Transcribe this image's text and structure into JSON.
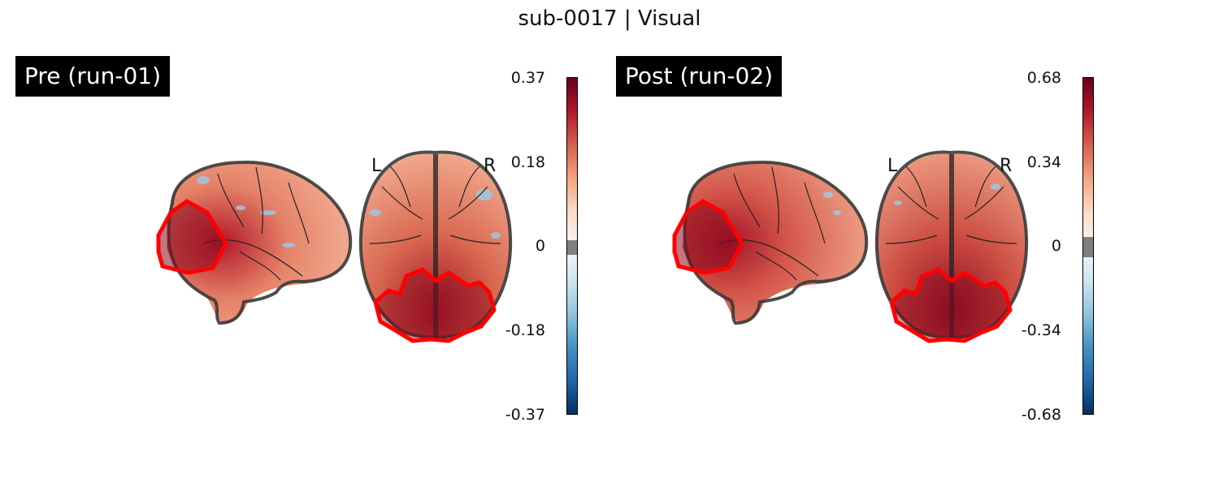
{
  "figure": {
    "title": "sub-0017 | Visual"
  },
  "panels": [
    {
      "label": "Pre (run-01)",
      "hemisphere_labels": {
        "left": "L",
        "right": "R"
      },
      "colorbar": {
        "ticks": [
          "0.37",
          "0.18",
          "0",
          "-0.18",
          "-0.37"
        ],
        "vmin": -0.37,
        "vmax": 0.37,
        "colormap": [
          "#053061",
          "#2166ac",
          "#4393c3",
          "#92c5de",
          "#d1e5f0",
          "#f7f7f7",
          "#fddbc7",
          "#f4a582",
          "#d6604d",
          "#b2182b",
          "#67001f"
        ],
        "threshold_color": "#808080"
      }
    },
    {
      "label": "Post (run-02)",
      "hemisphere_labels": {
        "left": "L",
        "right": "R"
      },
      "colorbar": {
        "ticks": [
          "0.68",
          "0.34",
          "0",
          "-0.34",
          "-0.68"
        ],
        "vmin": -0.68,
        "vmax": 0.68,
        "colormap": [
          "#053061",
          "#2166ac",
          "#4393c3",
          "#92c5de",
          "#d1e5f0",
          "#f7f7f7",
          "#fddbc7",
          "#f4a582",
          "#d6604d",
          "#b2182b",
          "#67001f"
        ],
        "threshold_color": "#808080"
      }
    }
  ],
  "roi_outline_color": "#ff0000",
  "brain_outline_color": "#3a3a3a"
}
